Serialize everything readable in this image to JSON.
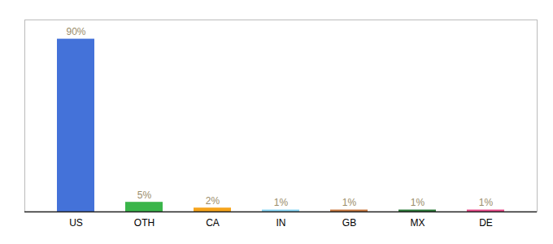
{
  "chart_data": {
    "type": "bar",
    "categories": [
      "US",
      "OTH",
      "CA",
      "IN",
      "GB",
      "MX",
      "DE"
    ],
    "values": [
      90,
      5,
      2,
      1,
      1,
      1,
      1
    ],
    "value_labels": [
      "90%",
      "5%",
      "2%",
      "1%",
      "1%",
      "1%",
      "1%"
    ],
    "colors": [
      "#4472d9",
      "#3ab54a",
      "#f5a31a",
      "#87d3f2",
      "#c87941",
      "#2d7a3a",
      "#e84d8a"
    ],
    "ylim": [
      0,
      100
    ],
    "data_labels": true,
    "tick_labels": "x",
    "grid": false
  }
}
